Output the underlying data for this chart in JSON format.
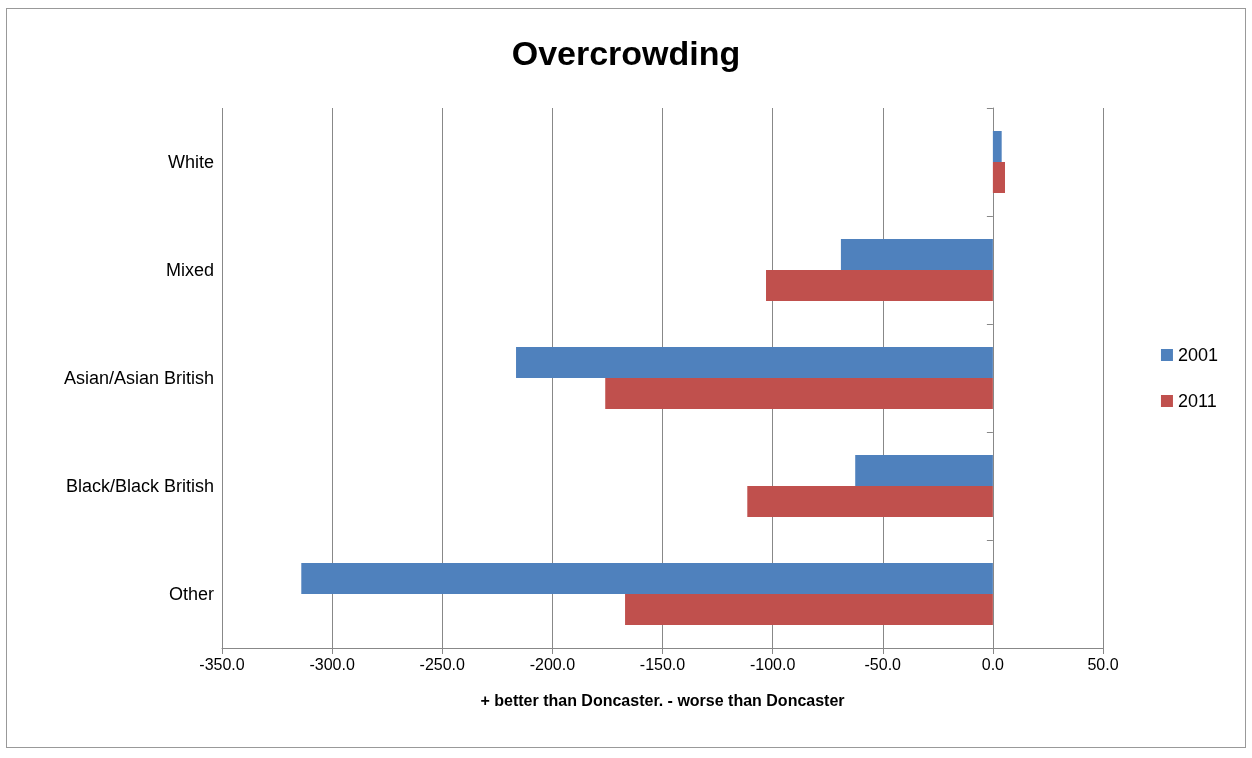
{
  "chart_data": {
    "type": "bar",
    "orientation": "horizontal",
    "title": "Overcrowding",
    "xlabel": "+ better than Doncaster. - worse than Doncaster",
    "categories": [
      "White",
      "Mixed",
      "Asian/Asian British",
      "Black/Black British",
      "Other"
    ],
    "series": [
      {
        "name": "2001",
        "color": "#4f81bd",
        "values": [
          4,
          -69,
          -216.5,
          -62.5,
          -314
        ]
      },
      {
        "name": "2011",
        "color": "#c0504d",
        "values": [
          5.5,
          -103,
          -176,
          -111.5,
          -167
        ]
      }
    ],
    "xlim": [
      -350,
      50
    ],
    "xticks": [
      {
        "value": -350,
        "label": "-350.0"
      },
      {
        "value": -300,
        "label": "-300.0"
      },
      {
        "value": -250,
        "label": "-250.0"
      },
      {
        "value": -200,
        "label": "-200.0"
      },
      {
        "value": -150,
        "label": "-150.0"
      },
      {
        "value": -100,
        "label": "-100.0"
      },
      {
        "value": -50,
        "label": "-50.0"
      },
      {
        "value": 0,
        "label": "0.0"
      },
      {
        "value": 50,
        "label": "50.0"
      }
    ],
    "grid": "x",
    "legend": "right"
  }
}
